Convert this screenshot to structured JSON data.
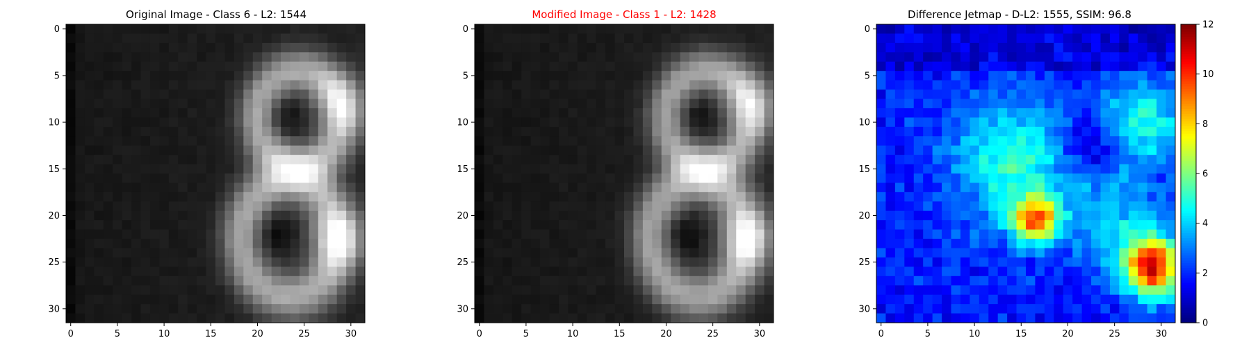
{
  "chart_data": [
    {
      "type": "heatmap",
      "title": "Original Image - Class 6 - L2: 1544",
      "title_color": "#000000",
      "colormap": "gray",
      "grid_size": [
        32,
        32
      ],
      "xticks": [
        0,
        5,
        10,
        15,
        20,
        25,
        30
      ],
      "yticks": [
        0,
        5,
        10,
        15,
        20,
        25,
        30
      ],
      "xlim": [
        -0.5,
        31.5
      ],
      "ylim": [
        31.5,
        -0.5
      ],
      "description_values": "grayscale pixel intensities of a digit-like shape (two bright loops on the right half, dark left half)"
    },
    {
      "type": "heatmap",
      "title": "Modified Image - Class 1 - L2: 1428",
      "title_color": "#ff0000",
      "colormap": "gray",
      "grid_size": [
        32,
        32
      ],
      "xticks": [
        0,
        5,
        10,
        15,
        20,
        25,
        30
      ],
      "yticks": [
        0,
        5,
        10,
        15,
        20,
        25,
        30
      ],
      "xlim": [
        -0.5,
        31.5
      ],
      "ylim": [
        31.5,
        -0.5
      ]
    },
    {
      "type": "heatmap",
      "title": "Difference Jetmap - D-L2: 1555, SSIM: 96.8",
      "title_color": "#000000",
      "colormap": "jet",
      "grid_size": [
        32,
        32
      ],
      "xticks": [
        0,
        5,
        10,
        15,
        20,
        25,
        30
      ],
      "yticks": [
        0,
        5,
        10,
        15,
        20,
        25,
        30
      ],
      "xlim": [
        -0.5,
        31.5
      ],
      "ylim": [
        31.5,
        -0.5
      ],
      "colorbar": {
        "min": 0,
        "max": 12,
        "ticks": [
          0,
          2,
          4,
          6,
          8,
          10,
          12
        ]
      }
    }
  ]
}
